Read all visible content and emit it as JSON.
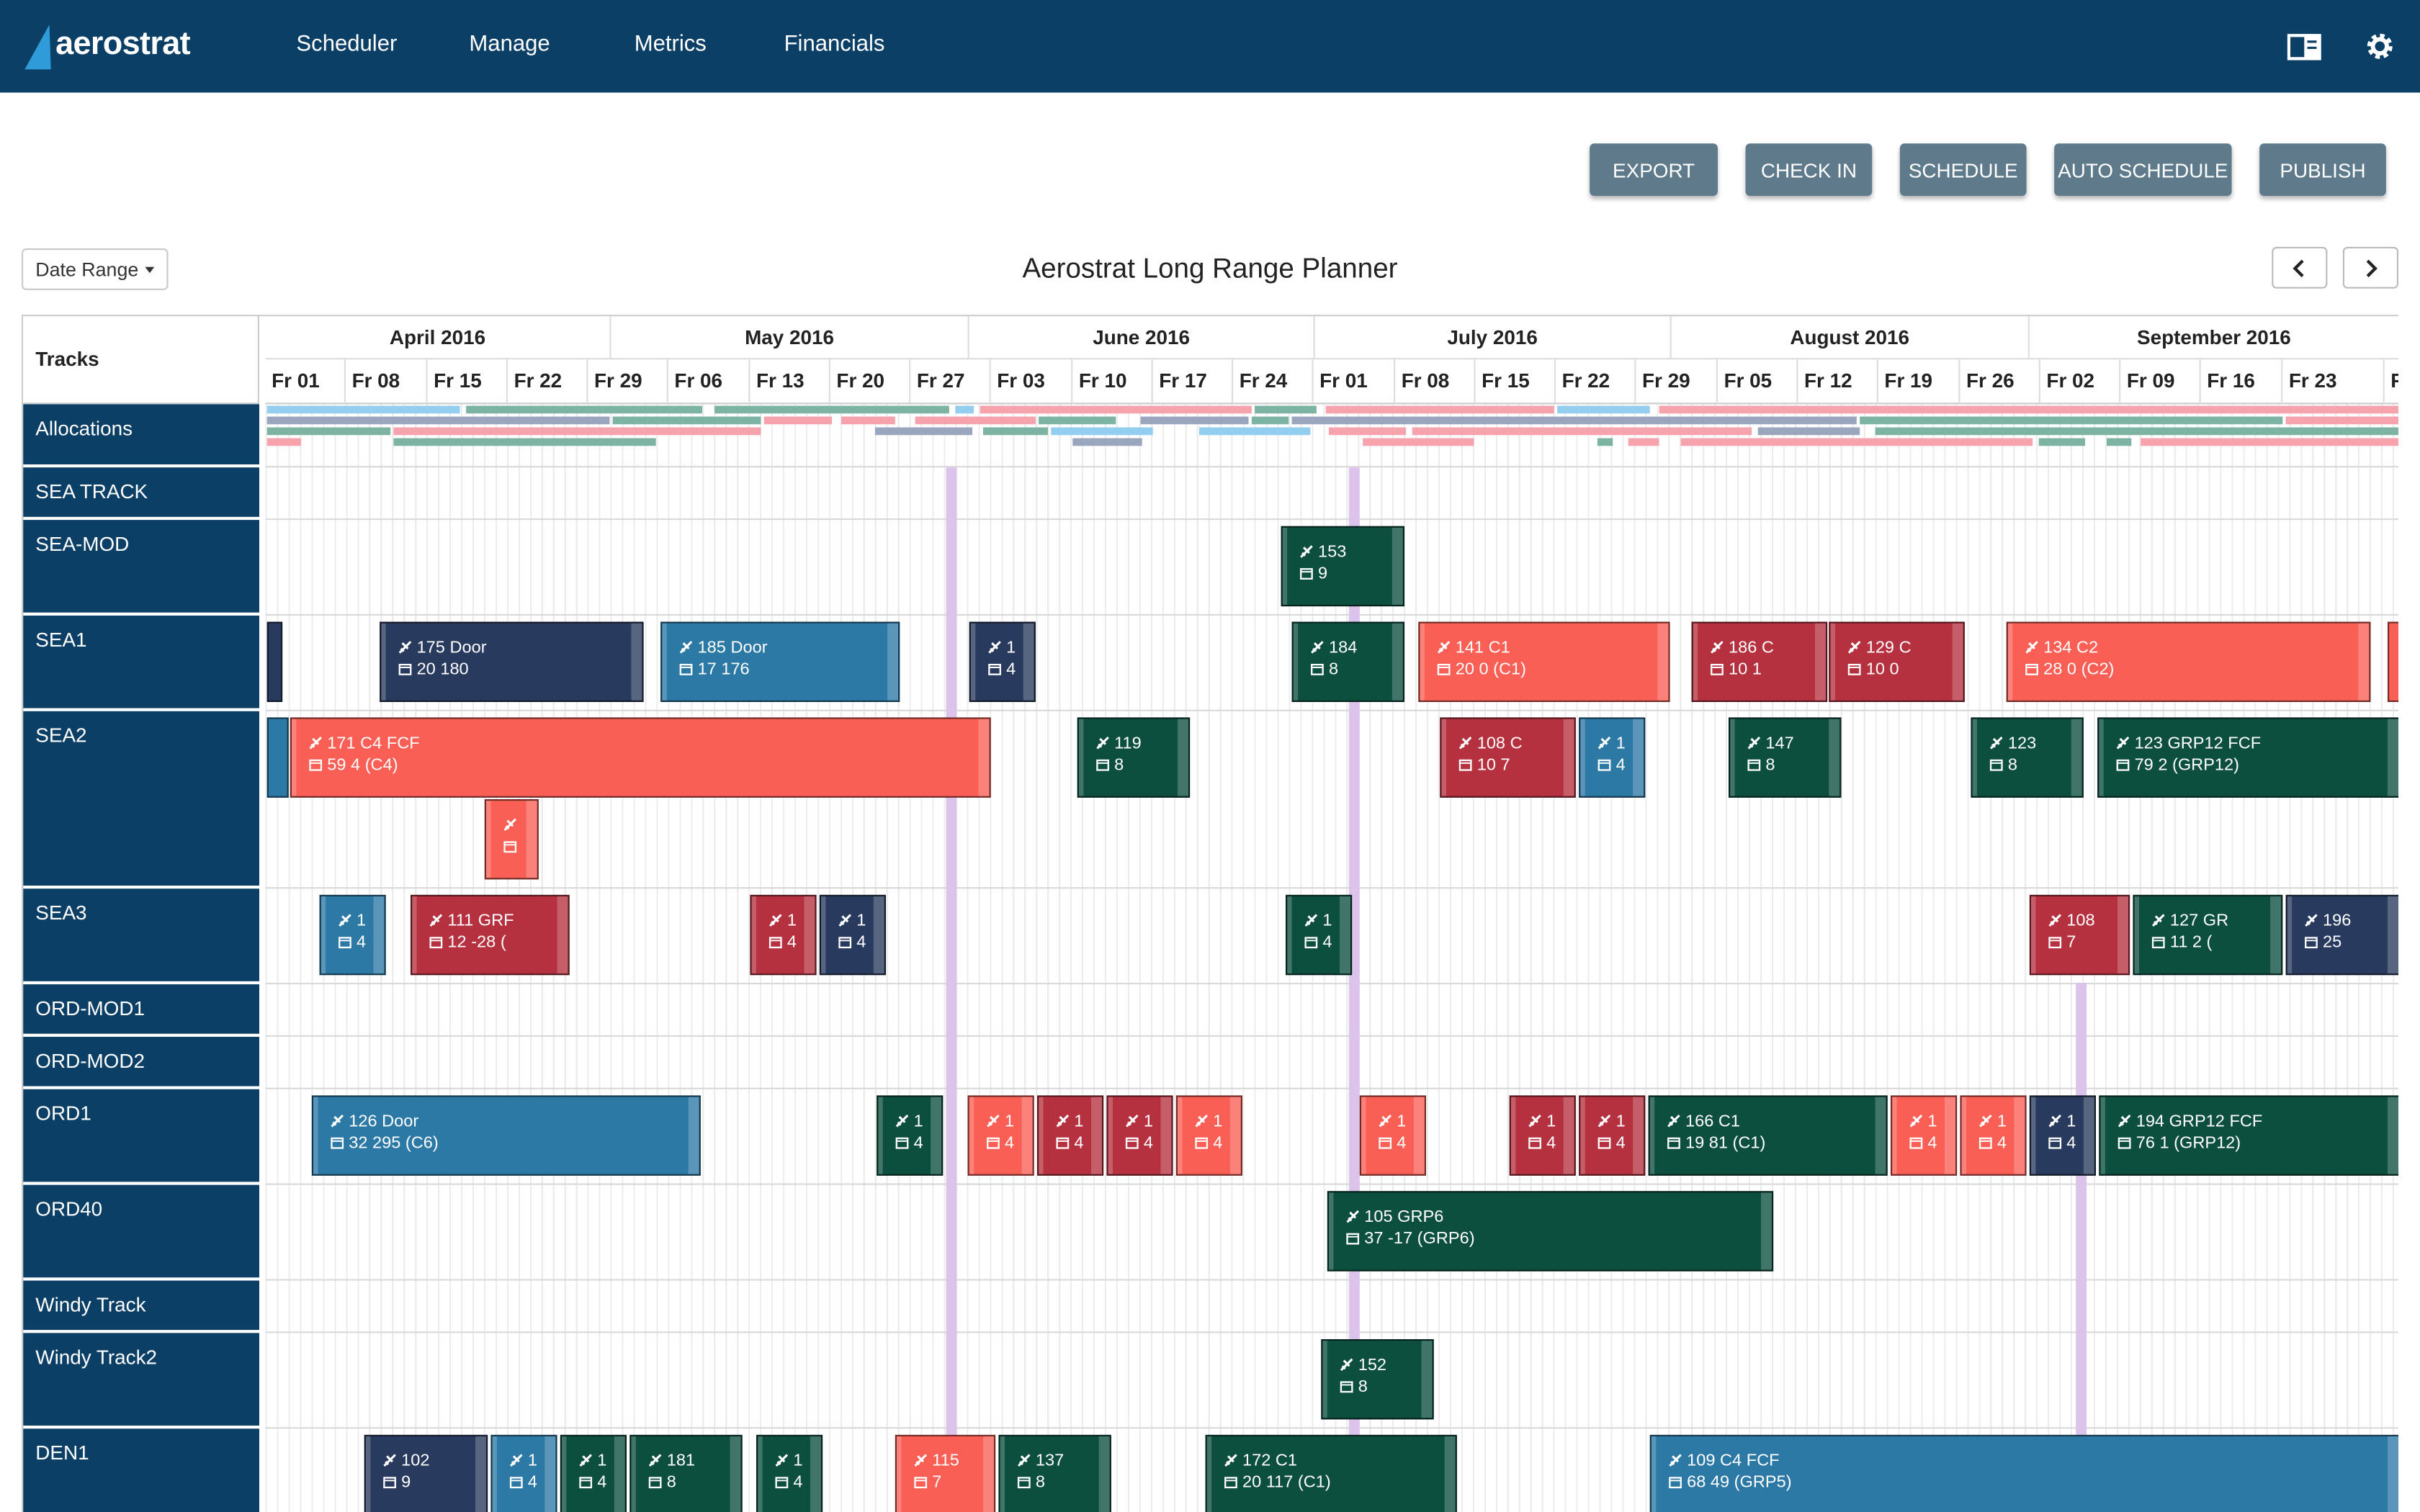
{
  "app": {
    "name": "aerostrat",
    "nav": [
      "Scheduler",
      "Manage",
      "Metrics",
      "Financials"
    ]
  },
  "toolbar": {
    "buttons": [
      "EXPORT",
      "CHECK IN",
      "SCHEDULE",
      "AUTO SCHEDULE",
      "PUBLISH"
    ]
  },
  "filter": {
    "date_range": "Date Range"
  },
  "planner": {
    "title": "Aerostrat Long Range Planner",
    "tracks_header": "Tracks"
  },
  "months": [
    "April 2016",
    "May 2016",
    "June 2016",
    "July 2016",
    "August 2016",
    "September 2016"
  ],
  "weeks": [
    "Fr 01",
    "Fr 08",
    "Fr 15",
    "Fr 22",
    "Fr 29",
    "Fr 06",
    "Fr 13",
    "Fr 20",
    "Fr 27",
    "Fr 03",
    "Fr 10",
    "Fr 17",
    "Fr 24",
    "Fr 01",
    "Fr 08",
    "Fr 15",
    "Fr 22",
    "Fr 29",
    "Fr 05",
    "Fr 12",
    "Fr 19",
    "Fr 26",
    "Fr 02",
    "Fr 09",
    "Fr 16",
    "Fr 23",
    "F"
  ],
  "tracks": [
    "Allocations",
    "SEA TRACK",
    "SEA-MOD",
    "SEA1",
    "SEA2",
    "SEA3",
    "ORD-MOD1",
    "ORD-MOD2",
    "ORD1",
    "ORD40",
    "Windy Track",
    "Windy Track2",
    "DEN1"
  ],
  "colors": {
    "navy": "#283a5e",
    "blue": "#2c79a6",
    "green": "#0d4f3f",
    "coral": "#f95f55",
    "rose": "#b6313f",
    "nav": "#0b3f66",
    "today": "#dcc3ec"
  },
  "blocks": [
    {
      "id": "s1a",
      "a": "",
      "b": ""
    },
    {
      "id": "s1b",
      "a": "175  Door",
      "b": "20  180"
    },
    {
      "id": "s1c",
      "a": "185  Door",
      "b": "17  176"
    },
    {
      "id": "s1d",
      "a": "1",
      "b": "4"
    },
    {
      "id": "s1e",
      "a": "184",
      "b": "8"
    },
    {
      "id": "s1f",
      "a": "141  C1",
      "b": "20  0 (C1)"
    },
    {
      "id": "s1g",
      "a": "186  C",
      "b": "10  1"
    },
    {
      "id": "s1h",
      "a": "129  C",
      "b": "10  0"
    },
    {
      "id": "s1i",
      "a": "134  C2",
      "b": "28  0 (C2)"
    },
    {
      "id": "s1j",
      "a": "",
      "b": ""
    },
    {
      "id": "sm1",
      "a": "153",
      "b": "9"
    },
    {
      "id": "s2a",
      "a": "",
      "b": ""
    },
    {
      "id": "s2b",
      "a": "171  C4  FCF",
      "b": "59  4 (C4)"
    },
    {
      "id": "s2c",
      "a": "",
      "b": ""
    },
    {
      "id": "s2d",
      "a": "119",
      "b": "8"
    },
    {
      "id": "s2e",
      "a": "108  C",
      "b": "10  7"
    },
    {
      "id": "s2f",
      "a": "1",
      "b": "4"
    },
    {
      "id": "s2g",
      "a": "147",
      "b": "8"
    },
    {
      "id": "s2h",
      "a": "123",
      "b": "8"
    },
    {
      "id": "s2i",
      "a": "123  GRP12  FCF",
      "b": "79  2 (GRP12)"
    },
    {
      "id": "s3a",
      "a": "1",
      "b": "4"
    },
    {
      "id": "s3b",
      "a": "111  GRF",
      "b": "12  -28 ("
    },
    {
      "id": "s3c",
      "a": "1",
      "b": "4"
    },
    {
      "id": "s3d",
      "a": "1",
      "b": "4"
    },
    {
      "id": "s3e",
      "a": "1",
      "b": "4"
    },
    {
      "id": "s3f",
      "a": "108",
      "b": "7"
    },
    {
      "id": "s3g",
      "a": "127  GR",
      "b": "11  2 ("
    },
    {
      "id": "s3h",
      "a": "196",
      "b": "25"
    },
    {
      "id": "o1a",
      "a": "126  Door",
      "b": "32  295 (C6)"
    },
    {
      "id": "o1b",
      "a": "1",
      "b": "4"
    },
    {
      "id": "o1c",
      "a": "1",
      "b": "4"
    },
    {
      "id": "o1d",
      "a": "1",
      "b": "4"
    },
    {
      "id": "o1e",
      "a": "1",
      "b": "4"
    },
    {
      "id": "o1f",
      "a": "1",
      "b": "4"
    },
    {
      "id": "o1g",
      "a": "1",
      "b": "4"
    },
    {
      "id": "o1h",
      "a": "1",
      "b": "4"
    },
    {
      "id": "o1i",
      "a": "1",
      "b": "4"
    },
    {
      "id": "o1j",
      "a": "166  C1",
      "b": "19  81 (C1)"
    },
    {
      "id": "o1k",
      "a": "1",
      "b": "4"
    },
    {
      "id": "o1l",
      "a": "1",
      "b": "4"
    },
    {
      "id": "o1m",
      "a": "1",
      "b": "4"
    },
    {
      "id": "o1n",
      "a": "194  GRP12  FCF",
      "b": "76  1 (GRP12)"
    },
    {
      "id": "o4a",
      "a": "105  GRP6",
      "b": "37  -17 (GRP6)"
    },
    {
      "id": "w2a",
      "a": "152",
      "b": "8"
    },
    {
      "id": "d1a",
      "a": "102",
      "b": "9"
    },
    {
      "id": "d1b",
      "a": "1",
      "b": "4"
    },
    {
      "id": "d1c",
      "a": "1",
      "b": "4"
    },
    {
      "id": "d1d",
      "a": "181",
      "b": "8"
    },
    {
      "id": "d1e",
      "a": "1",
      "b": "4"
    },
    {
      "id": "d1f",
      "a": "115",
      "b": "7"
    },
    {
      "id": "d1g",
      "a": "137",
      "b": "8"
    },
    {
      "id": "d1h",
      "a": "172  C1",
      "b": "20  117 (C1)"
    },
    {
      "id": "d1i",
      "a": "109  C4  FCF",
      "b": "68  49 (GRP5)"
    }
  ]
}
